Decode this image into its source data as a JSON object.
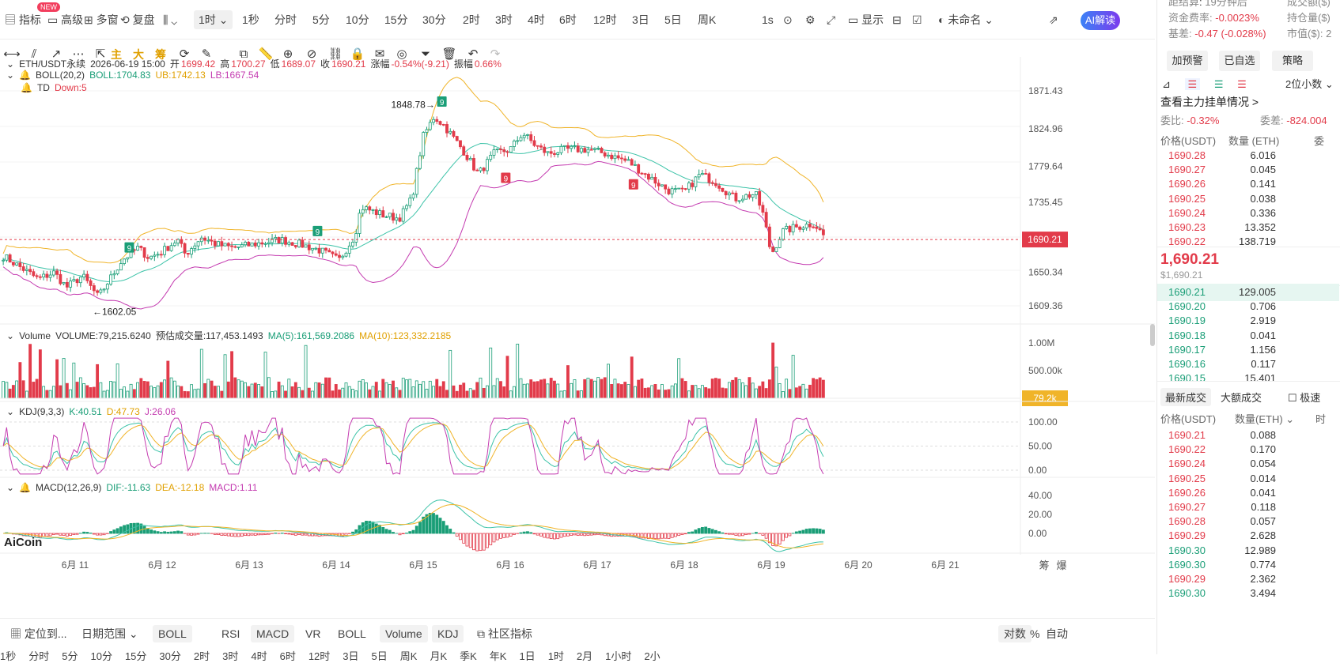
{
  "toolbar": {
    "indicator": "指标",
    "new_badge": "NEW",
    "advanced": "高级",
    "multi_window": "多窗",
    "replay": "复盘",
    "interval_selected": "1时",
    "intervals": [
      "1秒",
      "分时",
      "5分",
      "10分",
      "15分",
      "30分",
      "2时",
      "3时",
      "4时",
      "6时",
      "12时",
      "3日",
      "5日",
      "周K"
    ],
    "one_s": "1s",
    "display": "显示",
    "unnamed": "未命名",
    "ai_label": "AI解读"
  },
  "drawtools": {
    "main": "主",
    "big": "大",
    "chip": "筹"
  },
  "legend": {
    "symbol": "ETH/USDT永续",
    "datetime": "2026-06-19 15:00",
    "open_l": "开",
    "open": "1699.42",
    "high_l": "高",
    "high": "1700.27",
    "low_l": "低",
    "low": "1689.07",
    "close_l": "收",
    "close": "1690.21",
    "change_l": "涨幅",
    "change": "-0.54%(-9.21)",
    "amp_l": "振幅",
    "amp": "0.66%",
    "boll": "BOLL(20,2)",
    "boll_v": "BOLL:1704.83",
    "ub": "UB:1742.13",
    "lb": "LB:1667.54",
    "td": "TD",
    "td_v": "Down:5",
    "vol": "Volume",
    "vol_v": "VOLUME:79,215.6240",
    "vol_est": "预估成交量:117,453.1493",
    "ma5": "MA(5):161,569.2086",
    "ma10": "MA(10):123,332.2185",
    "kdj": "KDJ(9,3,3)",
    "k": "K:40.51",
    "d": "D:47.73",
    "j": "J:26.06",
    "macd": "MACD(12,26,9)",
    "dif": "DIF:-11.63",
    "dea": "DEA:-12.18",
    "macd_v": "MACD:1.11"
  },
  "annotations": {
    "high": "1848.78",
    "low": "1602.05",
    "td9": "9"
  },
  "logo": "AiCoin",
  "price_axis": [
    "1871.43",
    "1824.96",
    "1779.64",
    "1735.45",
    "1690.21",
    "1650.34",
    "1609.36"
  ],
  "vol_axis": [
    "1.00M",
    "500.00k",
    "79.2k"
  ],
  "kdj_axis": [
    "100.00",
    "50.00",
    "0.00"
  ],
  "macd_axis": [
    "40.00",
    "20.00",
    "0.00"
  ],
  "date_axis": [
    "6月 11",
    "6月 12",
    "6月 13",
    "6月 14",
    "6月 15",
    "6月 16",
    "6月 17",
    "6月 18",
    "6月 19",
    "6月 20",
    "6月 21"
  ],
  "axis_extra": [
    "筹",
    "爆"
  ],
  "bottom": {
    "locate": "定位到...",
    "range": "日期范围",
    "boll": "BOLL",
    "rsi": "RSI",
    "macd": "MACD",
    "vr": "VR",
    "boll2": "BOLL",
    "volume": "Volume",
    "kdj": "KDJ",
    "community": "社区指标",
    "log": "对数",
    "pct": "%",
    "auto": "自动"
  },
  "bottom2": [
    "1秒",
    "分时",
    "5分",
    "10分",
    "15分",
    "30分",
    "2时",
    "3时",
    "4时",
    "6时",
    "12时",
    "3日",
    "5日",
    "周K",
    "月K",
    "季K",
    "年K",
    "1日",
    "1时",
    "2月",
    "1小时",
    "2小"
  ],
  "right": {
    "top1": "距结算",
    "top1v": "19分钟后",
    "top2": "成交额($)",
    "fund_l": "资金费率:",
    "fund": "-0.0023%",
    "hold_l": "持仓量($)",
    "basis_l": "基差:",
    "basis": "-0.47 (-0.028%)",
    "mcap_l": "市值($):",
    "mcap": "2",
    "btn_alert": "加预警",
    "btn_fav": "已自选",
    "btn_strategy": "策略",
    "decimals": "2位小数",
    "orderbook_link": "查看主力挂单情况 >",
    "ratio_l": "委比:",
    "ratio": "-0.32%",
    "diff_l": "委差:",
    "diff": "-824.004",
    "col_price": "价格(USDT)",
    "col_qty": "数量 (ETH)",
    "col_3": "委",
    "asks": [
      [
        "1690.28",
        "6.016"
      ],
      [
        "1690.27",
        "0.045"
      ],
      [
        "1690.26",
        "0.141"
      ],
      [
        "1690.25",
        "0.038"
      ],
      [
        "1690.24",
        "0.336"
      ],
      [
        "1690.23",
        "13.352"
      ],
      [
        "1690.22",
        "138.719"
      ]
    ],
    "last": "1,690.21",
    "last_usd": "$1,690.21",
    "bids": [
      [
        "1690.21",
        "129.005"
      ],
      [
        "1690.20",
        "0.706"
      ],
      [
        "1690.19",
        "2.919"
      ],
      [
        "1690.18",
        "0.041"
      ],
      [
        "1690.17",
        "1.156"
      ],
      [
        "1690.16",
        "0.117"
      ],
      [
        "1690.15",
        "15.401"
      ]
    ],
    "tab_latest": "最新成交",
    "tab_big": "大额成交",
    "tab_fast": "极速",
    "t_col_price": "价格(USDT)",
    "t_col_qty": "数量(ETH)",
    "t_col3": "时",
    "trades": [
      [
        "1690.21",
        "0.088",
        "r"
      ],
      [
        "1690.22",
        "0.170",
        "r"
      ],
      [
        "1690.24",
        "0.054",
        "r"
      ],
      [
        "1690.25",
        "0.014",
        "r"
      ],
      [
        "1690.26",
        "0.041",
        "r"
      ],
      [
        "1690.27",
        "0.118",
        "r"
      ],
      [
        "1690.28",
        "0.057",
        "r"
      ],
      [
        "1690.29",
        "2.628",
        "r"
      ],
      [
        "1690.30",
        "12.989",
        "g"
      ],
      [
        "1690.30",
        "0.774",
        "g"
      ],
      [
        "1690.29",
        "2.362",
        "r"
      ],
      [
        "1690.30",
        "3.494",
        "g"
      ]
    ]
  },
  "colors": {
    "up": "#1a9e77",
    "down": "#e23b4a",
    "boll": "#3cc3a8",
    "ub": "#f0b429",
    "lb": "#c43bb0",
    "k": "#3cc3a8",
    "d": "#f0b429",
    "j": "#c43bb0"
  }
}
